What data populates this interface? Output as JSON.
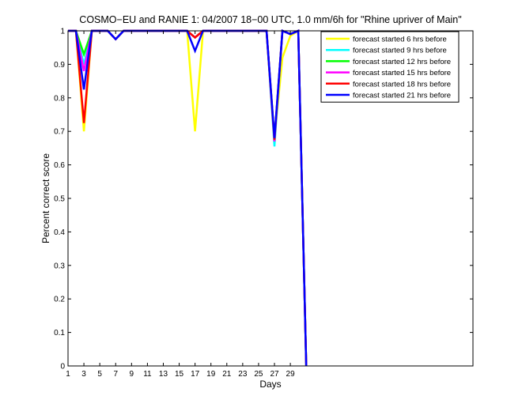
{
  "chart_data": {
    "type": "line",
    "title": "COSMO−EU and RANIE 1: 04/2007 18−00 UTC, 1.0 mm/6h for \"Rhine upriver of Main\"",
    "xlabel": "Days",
    "ylabel": "Percent correct score",
    "xlim": [
      1,
      52
    ],
    "ylim": [
      0,
      1
    ],
    "x_ticks": [
      1,
      3,
      5,
      7,
      9,
      11,
      13,
      15,
      17,
      19,
      21,
      23,
      25,
      27,
      29
    ],
    "y_ticks": [
      0,
      0.1,
      0.2,
      0.3,
      0.4,
      0.5,
      0.6,
      0.7,
      0.8,
      0.9,
      1
    ],
    "y_tick_labels": [
      "0",
      "0.1",
      "0.2",
      "0.3",
      "0.4",
      "0.5",
      "0.6",
      "0.7",
      "0.8",
      "0.9",
      "1"
    ],
    "legend_position": "top-right",
    "grid": false,
    "x": [
      1,
      2,
      3,
      4,
      5,
      6,
      7,
      8,
      9,
      10,
      11,
      12,
      13,
      14,
      15,
      16,
      17,
      18,
      19,
      20,
      21,
      22,
      23,
      24,
      25,
      26,
      27,
      28,
      29,
      30,
      31
    ],
    "series": [
      {
        "name": "forecast started 6 hrs before",
        "color": "#ffff00",
        "values": [
          1,
          1,
          0.7,
          1,
          1,
          1,
          0.975,
          1,
          1,
          1,
          1,
          1,
          1,
          1,
          1,
          1,
          0.7,
          1,
          1,
          1,
          1,
          1,
          1,
          1,
          1,
          1,
          0.68,
          0.92,
          0.985,
          1,
          0
        ]
      },
      {
        "name": "forecast started 9 hrs before",
        "color": "#00ffff",
        "values": [
          1,
          1,
          0.9,
          1,
          1,
          1,
          0.975,
          1,
          1,
          1,
          1,
          1,
          1,
          1,
          1,
          1,
          0.98,
          1,
          1,
          1,
          1,
          1,
          1,
          1,
          1,
          1,
          0.655,
          1,
          0.99,
          1,
          0
        ]
      },
      {
        "name": "forecast started 12 hrs before",
        "color": "#00ff00",
        "values": [
          1,
          1,
          0.93,
          1,
          1,
          1,
          0.975,
          1,
          1,
          1,
          1,
          1,
          1,
          1,
          1,
          1,
          0.98,
          1,
          1,
          1,
          1,
          1,
          1,
          1,
          1,
          1,
          0.67,
          1,
          0.99,
          1,
          0
        ]
      },
      {
        "name": "forecast started 15 hrs before",
        "color": "#ff00ff",
        "values": [
          1,
          1,
          0.88,
          1,
          1,
          1,
          0.975,
          1,
          1,
          1,
          1,
          1,
          1,
          1,
          1,
          1,
          0.98,
          1,
          1,
          1,
          1,
          1,
          1,
          1,
          1,
          1,
          0.67,
          1,
          0.99,
          1,
          0
        ]
      },
      {
        "name": "forecast started 18 hrs before",
        "color": "#ff0000",
        "values": [
          1,
          1,
          0.725,
          1,
          1,
          1,
          0.975,
          1,
          1,
          1,
          1,
          1,
          1,
          1,
          1,
          1,
          0.98,
          1,
          1,
          1,
          1,
          1,
          1,
          1,
          1,
          1,
          0.675,
          1,
          0.99,
          1,
          0
        ]
      },
      {
        "name": "forecast started 21 hrs before",
        "color": "#0000ff",
        "values": [
          1,
          1,
          0.825,
          1,
          1,
          1,
          0.975,
          1,
          1,
          1,
          1,
          1,
          1,
          1,
          1,
          1,
          0.94,
          1,
          1,
          1,
          1,
          1,
          1,
          1,
          1,
          1,
          0.68,
          1,
          0.99,
          1,
          0
        ]
      }
    ]
  }
}
